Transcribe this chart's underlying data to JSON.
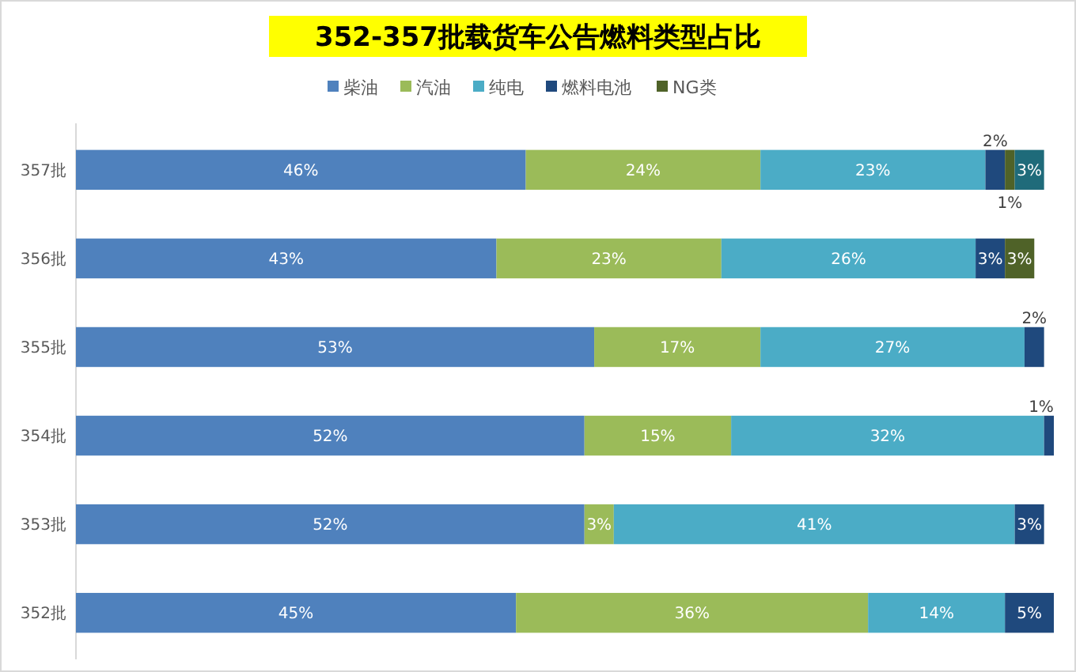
{
  "chart_data": {
    "type": "bar",
    "orientation": "horizontal",
    "stacked": true,
    "title": "352-357批载货车公告燃料类型占比",
    "categories": [
      "357批",
      "356批",
      "355批",
      "354批",
      "353批",
      "352批"
    ],
    "xlim": [
      0,
      100
    ],
    "tick_labels": "y",
    "legend": "top",
    "series": [
      {
        "name": "柴油",
        "color": "#4f81bd",
        "values": [
          46,
          43,
          53,
          52,
          52,
          45
        ],
        "value_labels": [
          "46%",
          "43%",
          "53%",
          "52%",
          "52%",
          "45%"
        ]
      },
      {
        "name": "汽油",
        "color": "#9bbb59",
        "values": [
          24,
          23,
          17,
          15,
          3,
          36
        ],
        "value_labels": [
          "24%",
          "23%",
          "17%",
          "15%",
          "3%",
          "36%"
        ]
      },
      {
        "name": "纯电",
        "color": "#4bacc6",
        "values": [
          23,
          26,
          27,
          32,
          41,
          14
        ],
        "value_labels": [
          "23%",
          "26%",
          "27%",
          "32%",
          "41%",
          "14%"
        ]
      },
      {
        "name": "燃料电池",
        "color": "#1f497d",
        "values": [
          2,
          3,
          2,
          1,
          3,
          5
        ],
        "value_labels": [
          "2%",
          "3%",
          "2%",
          "1%",
          "3%",
          "5%"
        ]
      },
      {
        "name": "NG类",
        "color": "#4f6228",
        "values": [
          1,
          3,
          null,
          null,
          null,
          null
        ],
        "value_labels": [
          "1%",
          "3%",
          null,
          null,
          null,
          null
        ]
      },
      {
        "color": "#1f6b7a",
        "values": [
          3,
          null,
          null,
          null,
          null,
          null
        ],
        "value_labels": [
          "3%",
          null,
          null,
          null,
          null,
          null
        ]
      }
    ]
  }
}
